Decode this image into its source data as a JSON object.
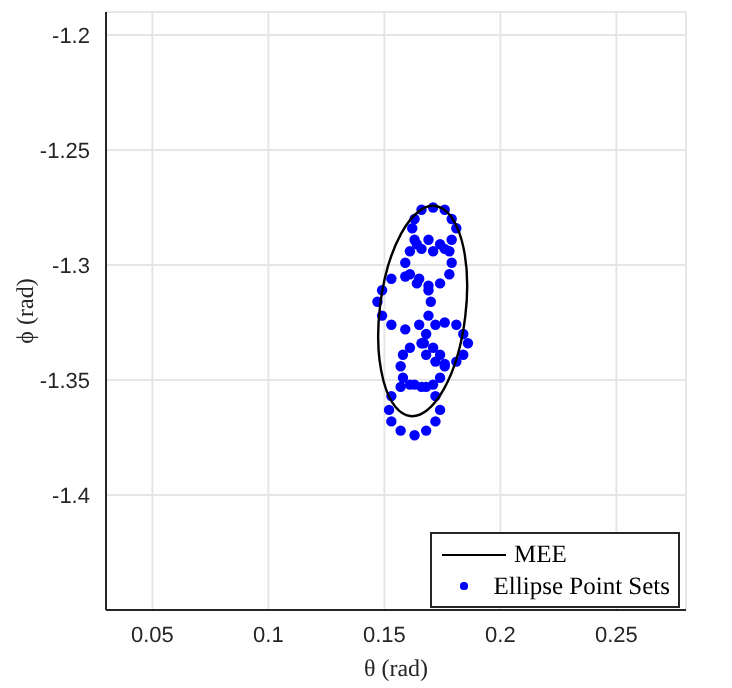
{
  "chart_data": {
    "type": "scatter",
    "xlabel": "θ (rad)",
    "ylabel": "ϕ (rad)",
    "xlim": [
      0.03,
      0.28
    ],
    "xticks": [
      0.05,
      0.1,
      0.15,
      0.2,
      0.25
    ],
    "ylim": [
      -1.45,
      -1.19
    ],
    "yticks": [
      -1.4,
      -1.35,
      -1.3,
      -1.25,
      -1.2
    ],
    "grid": true,
    "legend": "bottom right",
    "series": [
      {
        "name": "MEE",
        "type": "other",
        "color": "#000000",
        "line_style": "solid"
      },
      {
        "name": "Ellipse Point Sets",
        "type": "scatter",
        "color": "#0000ff",
        "marker": "circle",
        "x": [
          0.181,
          0.179,
          0.176,
          0.171,
          0.166,
          0.163,
          0.162,
          0.163,
          0.166,
          0.171,
          0.176,
          0.179,
          0.179,
          0.178,
          0.174,
          0.169,
          0.164,
          0.161,
          0.159,
          0.161,
          0.164,
          0.169,
          0.174,
          0.178,
          0.17,
          0.169,
          0.165,
          0.159,
          0.153,
          0.149,
          0.147,
          0.149,
          0.153,
          0.159,
          0.165,
          0.169,
          0.186,
          0.184,
          0.181,
          0.176,
          0.172,
          0.168,
          0.167,
          0.168,
          0.172,
          0.176,
          0.181,
          0.184,
          0.176,
          0.174,
          0.171,
          0.166,
          0.161,
          0.158,
          0.157,
          0.158,
          0.161,
          0.166,
          0.171,
          0.174,
          0.174,
          0.172,
          0.168,
          0.163,
          0.157,
          0.153,
          0.152,
          0.153,
          0.157,
          0.163,
          0.168,
          0.172
        ],
        "values": [
          -1.284,
          -1.28,
          -1.276,
          -1.275,
          -1.276,
          -1.28,
          -1.284,
          -1.289,
          -1.293,
          -1.294,
          -1.293,
          -1.289,
          -1.299,
          -1.294,
          -1.291,
          -1.289,
          -1.291,
          -1.294,
          -1.299,
          -1.304,
          -1.308,
          -1.309,
          -1.308,
          -1.304,
          -1.316,
          -1.311,
          -1.306,
          -1.305,
          -1.306,
          -1.311,
          -1.316,
          -1.322,
          -1.326,
          -1.328,
          -1.326,
          -1.322,
          -1.334,
          -1.33,
          -1.326,
          -1.325,
          -1.326,
          -1.33,
          -1.334,
          -1.339,
          -1.342,
          -1.343,
          -1.342,
          -1.339,
          -1.344,
          -1.339,
          -1.336,
          -1.334,
          -1.336,
          -1.339,
          -1.344,
          -1.349,
          -1.352,
          -1.353,
          -1.352,
          -1.349,
          -1.363,
          -1.357,
          -1.353,
          -1.352,
          -1.353,
          -1.357,
          -1.363,
          -1.368,
          -1.372,
          -1.374,
          -1.372,
          -1.368
        ]
      }
    ]
  }
}
